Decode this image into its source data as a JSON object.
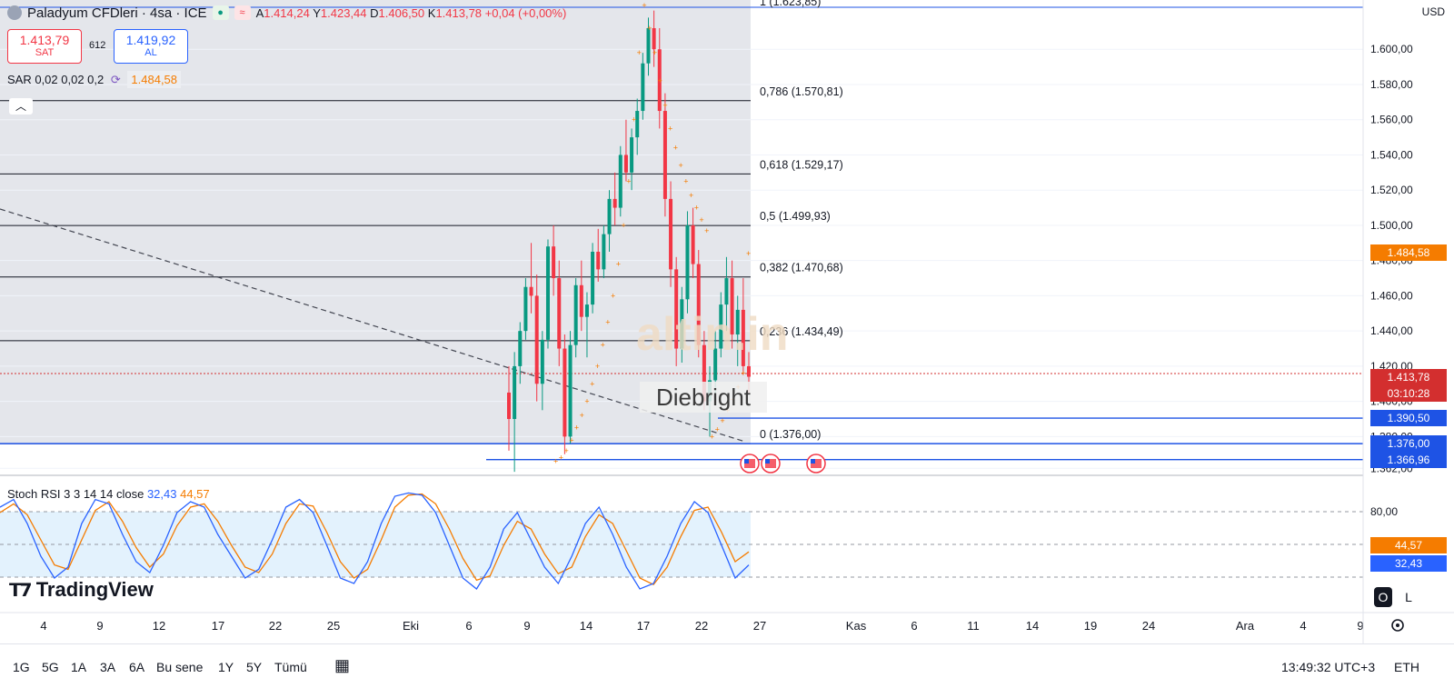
{
  "header": {
    "title": "Paladyum CFDleri · 4sa · ICE",
    "ohlc": {
      "open_label": "A",
      "open": "1.414,24",
      "high_label": "Y",
      "high": "1.423,44",
      "low_label": "D",
      "low": "1.406,50",
      "close_label": "K",
      "close": "1.413,78",
      "change": "+0,04 (+0,00%)"
    },
    "currency": "USD"
  },
  "trade": {
    "sell_price": "1.413,79",
    "sell_label": "SAT",
    "spread": "612",
    "buy_price": "1.419,92",
    "buy_label": "AL"
  },
  "indicator_sar": {
    "label": "SAR 0,02 0,02 0,2",
    "value": "1.484,58"
  },
  "stoch_rsi": {
    "label": "Stoch RSI 3 3 14 14 close",
    "k": "32,43",
    "d": "44,57"
  },
  "price_axis": {
    "ticks": [
      "1.600,00",
      "1.580,00",
      "1.560,00",
      "1.540,00",
      "1.520,00",
      "1.500,00",
      "1.480,00",
      "1.460,00",
      "1.440,00",
      "1.420,00",
      "1.400,00",
      "1.380,00",
      "1.362,00"
    ],
    "tick_values": [
      1600,
      1580,
      1560,
      1540,
      1520,
      1500,
      1480,
      1460,
      1440,
      1420,
      1400,
      1380,
      1362
    ],
    "min": 1358,
    "max": 1628
  },
  "fib_levels": [
    {
      "label": "1 (1.623,85)",
      "value": 1623.85
    },
    {
      "label": "0,786 (1.570,81)",
      "value": 1570.81
    },
    {
      "label": "0,618 (1.529,17)",
      "value": 1529.17
    },
    {
      "label": "0,5 (1.499,93)",
      "value": 1499.93
    },
    {
      "label": "0,382 (1.470,68)",
      "value": 1470.68
    },
    {
      "label": "0,236 (1.434,49)",
      "value": 1434.49
    },
    {
      "label": "0 (1.376,00)",
      "value": 1376.0
    }
  ],
  "price_tags": {
    "sar": {
      "text": "1.484,58",
      "value": 1484.58,
      "color": "#f57c00"
    },
    "last": {
      "text": "1.413,78",
      "value": 1413.78,
      "countdown": "03:10:28",
      "color": "#d32f2f"
    },
    "h1": {
      "text": "1.390,50",
      "value": 1390.5,
      "color": "#1e53e5"
    },
    "h2": {
      "text": "1.376,00",
      "value": 1376.0,
      "color": "#1e53e5"
    },
    "h3": {
      "text": "1.366,96",
      "value": 1366.96,
      "color": "#1e53e5"
    }
  },
  "stoch_axis": {
    "ticks": [
      "80,00"
    ],
    "tick_values": [
      80
    ],
    "k_tag": "32,43",
    "d_tag": "44,57",
    "k_color": "#2962ff",
    "d_color": "#f57c00"
  },
  "time_axis": {
    "labels": [
      "4",
      "9",
      "12",
      "17",
      "22",
      "25",
      "Eki",
      "6",
      "9",
      "14",
      "17",
      "22",
      "27",
      "Kas",
      "6",
      "11",
      "14",
      "19",
      "24",
      "Ara",
      "4",
      "9"
    ]
  },
  "watermark": {
    "brand": "altin.in",
    "author": "Diebright"
  },
  "logo": "TradingView",
  "bottom_bar": {
    "ranges": [
      "1G",
      "5G",
      "1A",
      "3A",
      "6A",
      "Bu sene",
      "1Y",
      "5Y",
      "Tümü"
    ],
    "clock": "13:49:32 UTC+3",
    "session": "ETH"
  },
  "toggles": {
    "o": "O",
    "l": "L"
  },
  "colors": {
    "up": "#089981",
    "down": "#f23645",
    "sar": "#f57c00",
    "fib": "#131722",
    "hline": "#1e53e5",
    "k": "#2962ff",
    "d": "#f57c00",
    "band": "#e3f2fd"
  },
  "chart_data": {
    "type": "candlestick",
    "series_note": "",
    "candles": [
      [
        1405,
        1420,
        1372,
        1390
      ],
      [
        1390,
        1428,
        1360,
        1420
      ],
      [
        1420,
        1445,
        1410,
        1440
      ],
      [
        1440,
        1470,
        1435,
        1465
      ],
      [
        1465,
        1490,
        1450,
        1460
      ],
      [
        1460,
        1472,
        1400,
        1410
      ],
      [
        1410,
        1440,
        1395,
        1435
      ],
      [
        1435,
        1492,
        1430,
        1488
      ],
      [
        1488,
        1500,
        1460,
        1470
      ],
      [
        1470,
        1480,
        1420,
        1430
      ],
      [
        1430,
        1438,
        1370,
        1380
      ],
      [
        1380,
        1440,
        1376,
        1432
      ],
      [
        1432,
        1470,
        1425,
        1466
      ],
      [
        1466,
        1480,
        1440,
        1448
      ],
      [
        1448,
        1462,
        1425,
        1455
      ],
      [
        1455,
        1490,
        1450,
        1485
      ],
      [
        1485,
        1498,
        1468,
        1475
      ],
      [
        1475,
        1500,
        1470,
        1495
      ],
      [
        1495,
        1520,
        1485,
        1515
      ],
      [
        1515,
        1530,
        1500,
        1510
      ],
      [
        1510,
        1545,
        1505,
        1540
      ],
      [
        1540,
        1560,
        1525,
        1530
      ],
      [
        1530,
        1555,
        1520,
        1550
      ],
      [
        1550,
        1572,
        1540,
        1565
      ],
      [
        1565,
        1598,
        1560,
        1592
      ],
      [
        1592,
        1618,
        1585,
        1612
      ],
      [
        1612,
        1622,
        1590,
        1600
      ],
      [
        1600,
        1612,
        1555,
        1565
      ],
      [
        1565,
        1575,
        1505,
        1515
      ],
      [
        1515,
        1525,
        1465,
        1475
      ],
      [
        1475,
        1482,
        1420,
        1430
      ],
      [
        1430,
        1465,
        1422,
        1458
      ],
      [
        1458,
        1508,
        1450,
        1500
      ],
      [
        1500,
        1510,
        1470,
        1478
      ],
      [
        1478,
        1486,
        1425,
        1432
      ],
      [
        1432,
        1440,
        1395,
        1400
      ],
      [
        1400,
        1420,
        1380,
        1412
      ],
      [
        1412,
        1440,
        1400,
        1430
      ],
      [
        1430,
        1462,
        1425,
        1455
      ],
      [
        1455,
        1482,
        1440,
        1470
      ],
      [
        1470,
        1480,
        1430,
        1438
      ],
      [
        1438,
        1460,
        1420,
        1452
      ],
      [
        1452,
        1470,
        1415,
        1420
      ],
      [
        1420,
        1428,
        1405,
        1414
      ]
    ],
    "sar_points": [
      1366,
      1368,
      1372,
      1378,
      1385,
      1392,
      1400,
      1410,
      1420,
      1432,
      1445,
      1460,
      1478,
      1500,
      1525,
      1560,
      1598,
      1625,
      1612,
      1598,
      1582,
      1568,
      1555,
      1544,
      1534,
      1525,
      1517,
      1510,
      1503,
      1497,
      1380,
      1384,
      1389,
      1395,
      1401,
      1408,
      1416,
      1484
    ],
    "stoch_k": [
      85,
      92,
      70,
      40,
      20,
      30,
      70,
      92,
      88,
      60,
      35,
      25,
      50,
      80,
      90,
      85,
      60,
      40,
      20,
      28,
      55,
      85,
      92,
      80,
      50,
      20,
      15,
      35,
      70,
      95,
      98,
      96,
      80,
      50,
      20,
      10,
      30,
      65,
      80,
      55,
      30,
      15,
      40,
      70,
      85,
      60,
      30,
      10,
      15,
      40,
      70,
      90,
      80,
      50,
      20,
      32
    ],
    "stoch_d": [
      80,
      88,
      78,
      55,
      32,
      28,
      55,
      82,
      90,
      72,
      48,
      30,
      42,
      68,
      85,
      88,
      72,
      50,
      30,
      25,
      42,
      70,
      88,
      86,
      62,
      35,
      20,
      28,
      55,
      85,
      96,
      97,
      88,
      65,
      38,
      18,
      22,
      50,
      72,
      65,
      42,
      24,
      30,
      58,
      78,
      70,
      45,
      20,
      14,
      30,
      58,
      82,
      85,
      62,
      35,
      44
    ]
  }
}
